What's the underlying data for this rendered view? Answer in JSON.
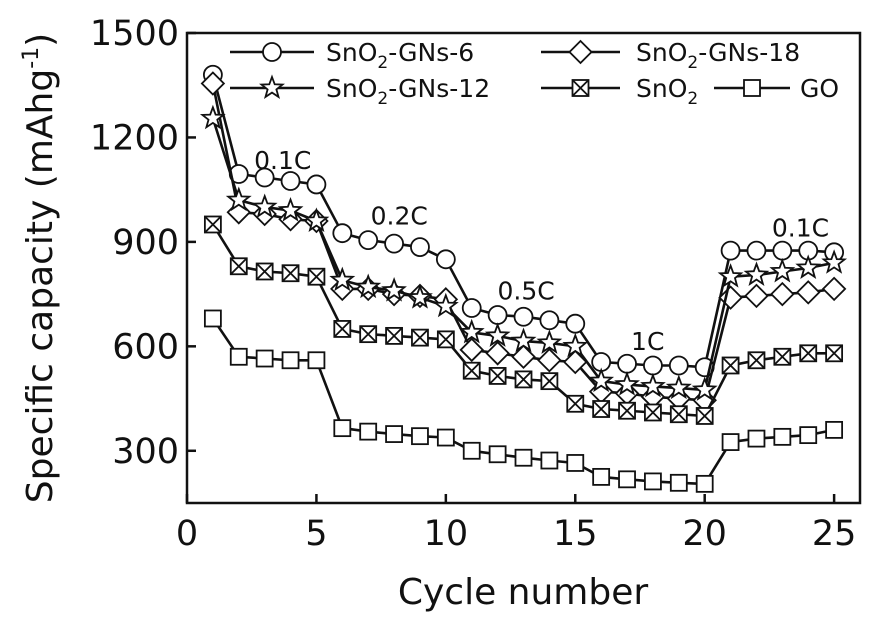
{
  "chart_data": {
    "type": "line",
    "title": "",
    "xlabel": "Cycle number",
    "ylabel": "Specific capacity (mAhg",
    "ylabel_superscript": "-1",
    "ylabel_close": ")",
    "xlim": [
      0,
      26
    ],
    "ylim": [
      150,
      1500
    ],
    "xticks": [
      0,
      5,
      10,
      15,
      20,
      25
    ],
    "xtick_labels": [
      "0",
      "5",
      "10",
      "15",
      "20",
      "25"
    ],
    "yticks": [
      300,
      600,
      900,
      1200,
      1500
    ],
    "ytick_labels": [
      "300",
      "600",
      "900",
      "1200",
      "1500"
    ],
    "x": [
      1,
      2,
      3,
      4,
      5,
      6,
      7,
      8,
      9,
      10,
      11,
      12,
      13,
      14,
      15,
      16,
      17,
      18,
      19,
      20,
      21,
      22,
      23,
      24,
      25
    ],
    "legend_position": "top",
    "grid": false,
    "series": [
      {
        "name": "SnO2-GNs-6",
        "legend": {
          "pre": "SnO",
          "sub": "2",
          "post": "-GNs-6"
        },
        "marker": "circle",
        "values": [
          1380,
          1095,
          1085,
          1075,
          1065,
          925,
          905,
          895,
          885,
          850,
          710,
          690,
          685,
          675,
          665,
          555,
          550,
          545,
          545,
          540,
          875,
          875,
          875,
          875,
          870
        ]
      },
      {
        "name": "SnO2-GNs-18",
        "legend": {
          "pre": "SnO",
          "sub": "2",
          "post": "-GNs-18"
        },
        "marker": "diamond",
        "values": [
          1355,
          985,
          980,
          965,
          960,
          765,
          765,
          750,
          745,
          735,
          590,
          580,
          570,
          560,
          555,
          470,
          465,
          455,
          450,
          445,
          740,
          745,
          750,
          755,
          765
        ]
      },
      {
        "name": "SnO2-GNs-12",
        "legend": {
          "pre": "SnO",
          "sub": "2",
          "post": "-GNs-12"
        },
        "marker": "star",
        "values": [
          1255,
          1020,
          1000,
          990,
          960,
          790,
          770,
          760,
          740,
          715,
          640,
          630,
          615,
          610,
          600,
          500,
          490,
          485,
          480,
          475,
          800,
          805,
          815,
          825,
          840
        ]
      },
      {
        "name": "SnO2",
        "legend": {
          "pre": "SnO",
          "sub": "2",
          "post": ""
        },
        "marker": "boxx",
        "values": [
          950,
          830,
          815,
          810,
          800,
          650,
          635,
          630,
          625,
          620,
          530,
          515,
          505,
          500,
          435,
          420,
          415,
          410,
          405,
          400,
          545,
          560,
          570,
          580,
          580
        ]
      },
      {
        "name": "GO",
        "legend": {
          "pre": "GO",
          "sub": "",
          "post": ""
        },
        "marker": "square",
        "values": [
          680,
          570,
          565,
          560,
          560,
          365,
          355,
          348,
          342,
          338,
          300,
          290,
          280,
          272,
          265,
          225,
          218,
          212,
          208,
          205,
          325,
          335,
          340,
          345,
          360
        ]
      }
    ],
    "annotations": [
      {
        "text": "0.1C",
        "x": 3.7,
        "y": 1110
      },
      {
        "text": "0.2C",
        "x": 8.2,
        "y": 950
      },
      {
        "text": "0.5C",
        "x": 13.1,
        "y": 735
      },
      {
        "text": "1C",
        "x": 17.8,
        "y": 590
      },
      {
        "text": "0.1C",
        "x": 23.7,
        "y": 915
      }
    ]
  }
}
